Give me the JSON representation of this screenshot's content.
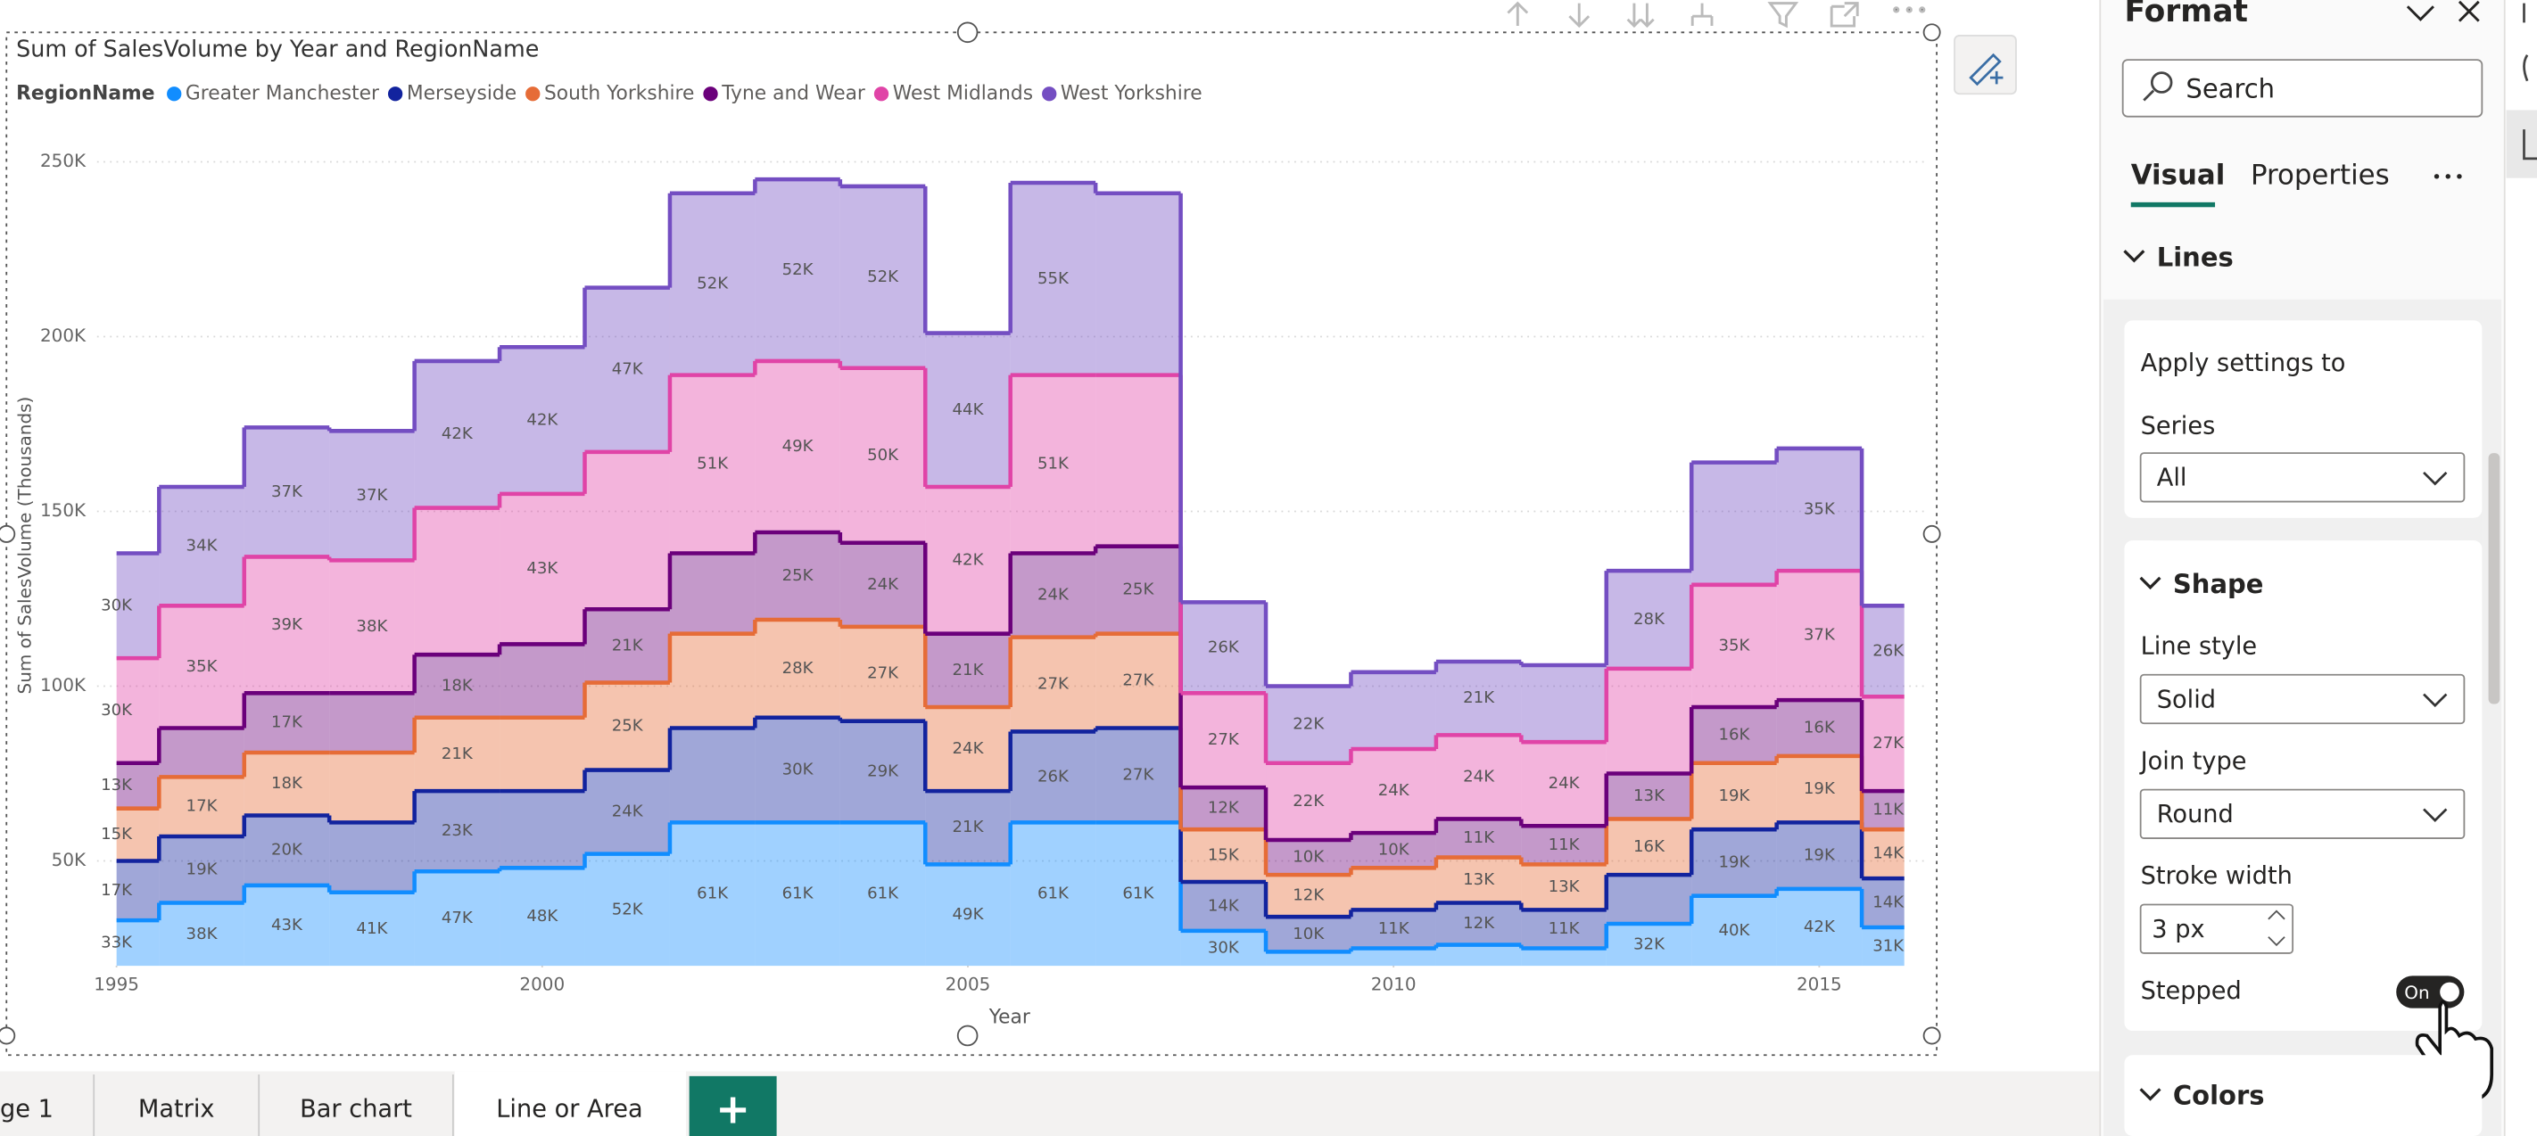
{
  "chart_data": {
    "type": "area",
    "stacked": true,
    "stepped": true,
    "title": "Sum of SalesVolume by Year and RegionName",
    "legend_title": "RegionName",
    "legend_position": "top-left",
    "grid": true,
    "x_label": "Year",
    "y_label": "Sum of SalesVolume (Thousands)",
    "x": [
      1995,
      1996,
      1997,
      1998,
      1999,
      2000,
      2001,
      2002,
      2003,
      2004,
      2005,
      2006,
      2007,
      2008,
      2009,
      2010,
      2011,
      2012,
      2013,
      2014,
      2015,
      2016
    ],
    "xlim": [
      1995,
      2016
    ],
    "xticks": [
      1995,
      2000,
      2005,
      2010,
      2015
    ],
    "ylim": [
      20000,
      255000
    ],
    "yticks": [
      {
        "value": 50000,
        "label": "50K"
      },
      {
        "value": 100000,
        "label": "100K"
      },
      {
        "value": 150000,
        "label": "150K"
      },
      {
        "value": 200000,
        "label": "200K"
      },
      {
        "value": 250000,
        "label": "250K"
      }
    ],
    "series": [
      {
        "name": "Greater Manchester",
        "color": "#118DFF",
        "values": [
          33000,
          38000,
          43000,
          41000,
          47000,
          48000,
          52000,
          61000,
          61000,
          61000,
          49000,
          61000,
          61000,
          30000,
          24000,
          25000,
          26000,
          25000,
          32000,
          40000,
          42000,
          31000
        ],
        "value_labels": [
          "33K",
          "38K",
          "43K",
          "41K",
          "47K",
          "48K",
          "52K",
          "61K",
          "61K",
          "61K",
          "49K",
          "61K",
          "61K",
          "30K",
          null,
          null,
          null,
          null,
          "32K",
          "40K",
          "42K",
          "31K"
        ]
      },
      {
        "name": "Merseyside",
        "color": "#12239E",
        "values": [
          17000,
          19000,
          20000,
          20000,
          23000,
          22000,
          24000,
          27000,
          30000,
          29000,
          21000,
          26000,
          27000,
          14000,
          10000,
          11000,
          12000,
          11000,
          14000,
          19000,
          19000,
          14000
        ],
        "value_labels": [
          "17K",
          "19K",
          "20K",
          null,
          "23K",
          null,
          "24K",
          null,
          "30K",
          "29K",
          "21K",
          "26K",
          "27K",
          "14K",
          "10K",
          "11K",
          "12K",
          "11K",
          null,
          "19K",
          "19K",
          "14K"
        ]
      },
      {
        "name": "South Yorkshire",
        "color": "#E66C37",
        "values": [
          15000,
          17000,
          18000,
          20000,
          21000,
          21000,
          25000,
          27000,
          28000,
          27000,
          24000,
          27000,
          27000,
          15000,
          12000,
          12000,
          13000,
          13000,
          16000,
          19000,
          19000,
          14000
        ],
        "value_labels": [
          "15K",
          "17K",
          "18K",
          null,
          "21K",
          null,
          "25K",
          null,
          "28K",
          "27K",
          "24K",
          "27K",
          "27K",
          "15K",
          "12K",
          null,
          "13K",
          "13K",
          "16K",
          "19K",
          "19K",
          "14K"
        ]
      },
      {
        "name": "Tyne and Wear",
        "color": "#6B007B",
        "values": [
          13000,
          14000,
          17000,
          17000,
          18000,
          21000,
          21000,
          23000,
          25000,
          24000,
          21000,
          24000,
          25000,
          12000,
          10000,
          10000,
          11000,
          11000,
          13000,
          16000,
          16000,
          11000
        ],
        "value_labels": [
          "13K",
          null,
          "17K",
          null,
          "18K",
          null,
          "21K",
          null,
          "25K",
          "24K",
          "21K",
          "24K",
          "25K",
          "12K",
          "10K",
          "10K",
          "11K",
          "11K",
          "13K",
          "16K",
          "16K",
          "11K"
        ]
      },
      {
        "name": "West Midlands",
        "color": "#E044A7",
        "values": [
          30000,
          35000,
          39000,
          38000,
          42000,
          43000,
          45000,
          51000,
          49000,
          50000,
          42000,
          51000,
          49000,
          27000,
          22000,
          24000,
          24000,
          24000,
          30000,
          35000,
          37000,
          27000
        ],
        "value_labels": [
          "30K",
          "35K",
          "39K",
          "38K",
          null,
          "43K",
          null,
          "51K",
          "49K",
          "50K",
          "42K",
          "51K",
          null,
          "27K",
          "22K",
          "24K",
          "24K",
          "24K",
          null,
          "35K",
          "37K",
          "27K"
        ]
      },
      {
        "name": "West Yorkshire",
        "color": "#744EC2",
        "values": [
          30000,
          34000,
          37000,
          37000,
          42000,
          42000,
          47000,
          52000,
          52000,
          52000,
          44000,
          55000,
          52000,
          26000,
          22000,
          22000,
          21000,
          22000,
          28000,
          35000,
          35000,
          26000
        ],
        "value_labels": [
          "30K",
          "34K",
          "37K",
          "37K",
          "42K",
          "42K",
          "47K",
          "52K",
          "52K",
          "52K",
          "44K",
          "55K",
          null,
          "26K",
          "22K",
          null,
          "21K",
          null,
          "28K",
          null,
          "35K",
          "26K"
        ]
      }
    ]
  },
  "format_pane": {
    "title": "Format",
    "search": "Search",
    "tabs": [
      "Visual",
      "Properties"
    ],
    "section": "Lines",
    "apply_card": {
      "heading": "Apply settings to",
      "series_label": "Series",
      "series_value": "All"
    },
    "shape_card": {
      "heading": "Shape",
      "line_style_label": "Line style",
      "line_style_value": "Solid",
      "join_type_label": "Join type",
      "join_type_value": "Round",
      "stroke_width_label": "Stroke width",
      "stroke_width_value": "3 px",
      "stepped_label": "Stepped",
      "stepped_value": "On"
    },
    "colors_heading": "Colors"
  },
  "page_tabs": [
    "ge 1",
    "Matrix",
    "Bar chart",
    "Line or Area"
  ]
}
